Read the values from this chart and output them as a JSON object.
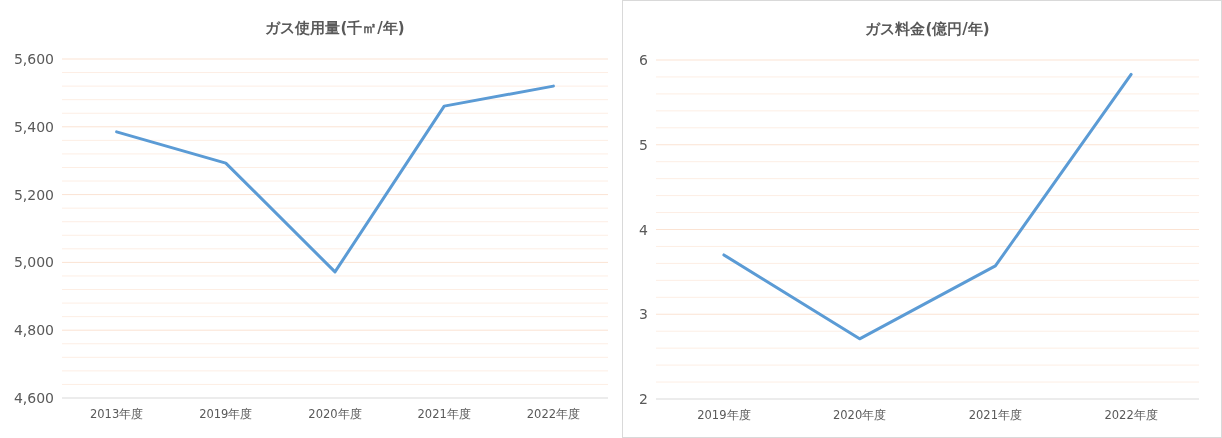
{
  "chart_data": [
    {
      "type": "line",
      "title": "ガス使用量(千㎡/年)",
      "categories": [
        "2013年度",
        "2019年度",
        "2020年度",
        "2021年度",
        "2022年度"
      ],
      "series": [
        {
          "color": "#5b9bd5",
          "values": [
            5385,
            5293,
            4972,
            5461,
            5520
          ]
        }
      ],
      "ylim": [
        4600,
        5600
      ],
      "yticks": [
        {
          "value": 4600,
          "label": "4,600"
        },
        {
          "value": 4640,
          "label": null
        },
        {
          "value": 4680,
          "label": null
        },
        {
          "value": 4720,
          "label": null
        },
        {
          "value": 4760,
          "label": null
        },
        {
          "value": 4800,
          "label": "4,800"
        },
        {
          "value": 4840,
          "label": null
        },
        {
          "value": 4880,
          "label": null
        },
        {
          "value": 4920,
          "label": null
        },
        {
          "value": 4960,
          "label": null
        },
        {
          "value": 5000,
          "label": "5,000"
        },
        {
          "value": 5040,
          "label": null
        },
        {
          "value": 5080,
          "label": null
        },
        {
          "value": 5120,
          "label": null
        },
        {
          "value": 5160,
          "label": null
        },
        {
          "value": 5200,
          "label": "5,200"
        },
        {
          "value": 5240,
          "label": null
        },
        {
          "value": 5280,
          "label": null
        },
        {
          "value": 5320,
          "label": null
        },
        {
          "value": 5360,
          "label": null
        },
        {
          "value": 5400,
          "label": "5,400"
        },
        {
          "value": 5440,
          "label": null
        },
        {
          "value": 5480,
          "label": null
        },
        {
          "value": 5520,
          "label": null
        },
        {
          "value": 5560,
          "label": null
        },
        {
          "value": 5600,
          "label": "5,600"
        }
      ],
      "grid": "y",
      "line_style": "solid"
    },
    {
      "type": "line",
      "title": "ガス料金(億円/年)",
      "categories": [
        "2019年度",
        "2020年度",
        "2021年度",
        "2022年度"
      ],
      "series": [
        {
          "color": "#5b9bd5",
          "values": [
            3.7,
            2.71,
            3.57,
            5.83
          ]
        }
      ],
      "ylim": [
        2,
        6
      ],
      "yticks": [
        2,
        {
          "value": 2.2,
          "label": null
        },
        {
          "value": 2.4,
          "label": null
        },
        {
          "value": 2.6,
          "label": null
        },
        {
          "value": 2.8,
          "label": null
        },
        3,
        {
          "value": 3.2,
          "label": null
        },
        {
          "value": 3.4,
          "label": null
        },
        {
          "value": 3.6,
          "label": null
        },
        {
          "value": 3.8,
          "label": null
        },
        4,
        {
          "value": 4.2,
          "label": null
        },
        {
          "value": 4.4,
          "label": null
        },
        {
          "value": 4.6,
          "label": null
        },
        {
          "value": 4.8,
          "label": null
        },
        5,
        {
          "value": 5.2,
          "label": null
        },
        {
          "value": 5.4,
          "label": null
        },
        {
          "value": 5.6,
          "label": null
        },
        {
          "value": 5.8,
          "label": null
        },
        6
      ],
      "grid": "y",
      "line_style": "solid"
    }
  ]
}
